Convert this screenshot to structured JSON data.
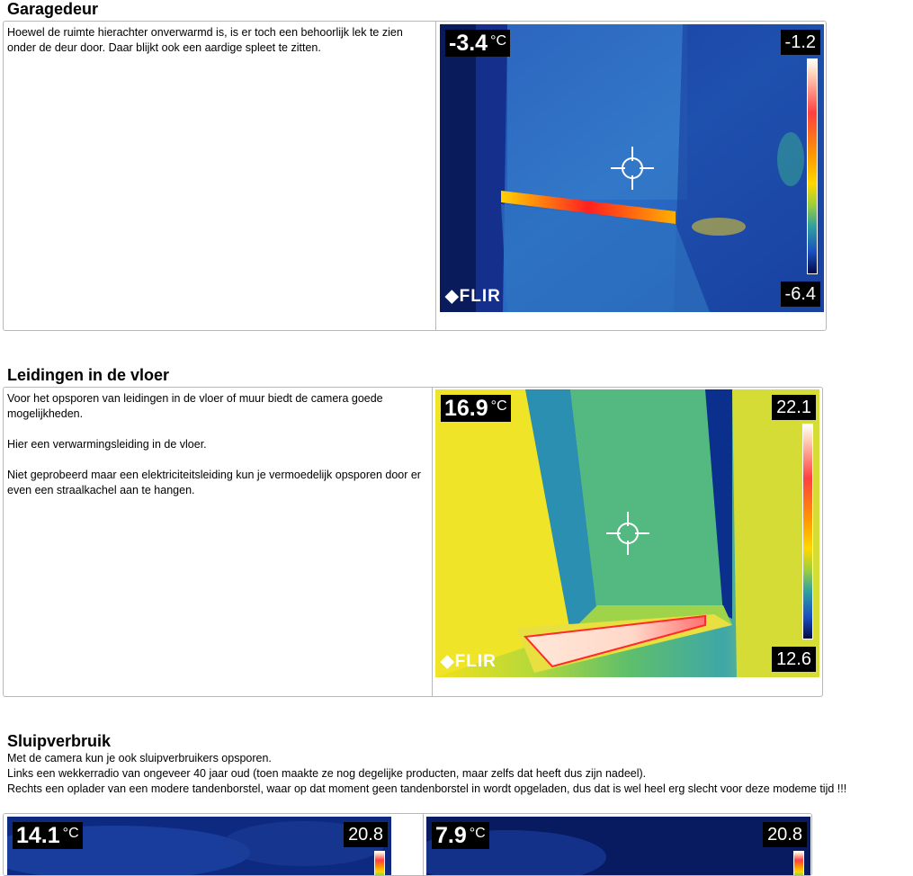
{
  "sections": [
    {
      "title": "Garagedeur",
      "text": [
        "Hoewel de ruimte hierachter onverwarmd is,  is er toch een behoorlijk lek te zien onder de deur door. Daar  blijkt ook een aardige spleet te zitten."
      ],
      "image": {
        "spot_temp": "-3.4",
        "unit": "°C",
        "scale_max": "-1.2",
        "scale_min": "-6.4",
        "brand": "FLIR"
      }
    },
    {
      "title": "Leidingen in de vloer",
      "text": [
        "Voor het opsporen van  leidingen in  de vloer of muur biedt de camera  goede mogelijkheden.",
        "Hier een verwarmingsleiding in  de vloer.",
        "Niet geprobeerd maar een elektriciteitsleiding kun je vermoedelijk opsporen door er even een straalkachel  aan  te hangen."
      ],
      "image": {
        "spot_temp": "16.9",
        "unit": "°C",
        "scale_max": "22.1",
        "scale_min": "12.6",
        "brand": "FLIR"
      }
    },
    {
      "title": "Sluipverbruik",
      "text": [
        "Met de camera kun je ook sluipverbruikers  opsporen.",
        "Links een wekkerradio van ongeveer 40 jaar  oud (toen maakte ze nog degelijke producten, maar zelfs dat heeft dus zijn nadeel).",
        "Rechts een oplader van een modere tandenborstel, waar op dat moment geen tandenborstel in wordt opgeladen, dus dat is  wel heel erg slecht voor deze modeme tijd !!!"
      ],
      "images": [
        {
          "spot_temp": "14.1",
          "unit": "°C",
          "scale_max": "20.8"
        },
        {
          "spot_temp": "7.9",
          "unit": "°C",
          "scale_max": "20.8"
        }
      ]
    }
  ]
}
